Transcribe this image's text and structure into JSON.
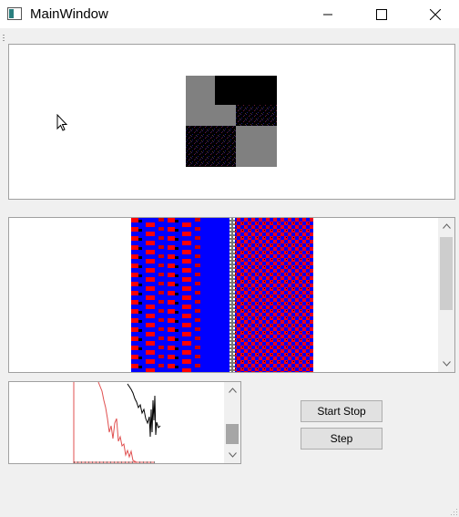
{
  "window": {
    "title": "MainWindow"
  },
  "buttons": {
    "start_stop": "Start Stop",
    "step": "Step"
  },
  "colors": {
    "red": "#ff0000",
    "blue": "#0000ff",
    "gray": "#808080",
    "plot_red": "#e05050",
    "plot_black": "#000000"
  }
}
